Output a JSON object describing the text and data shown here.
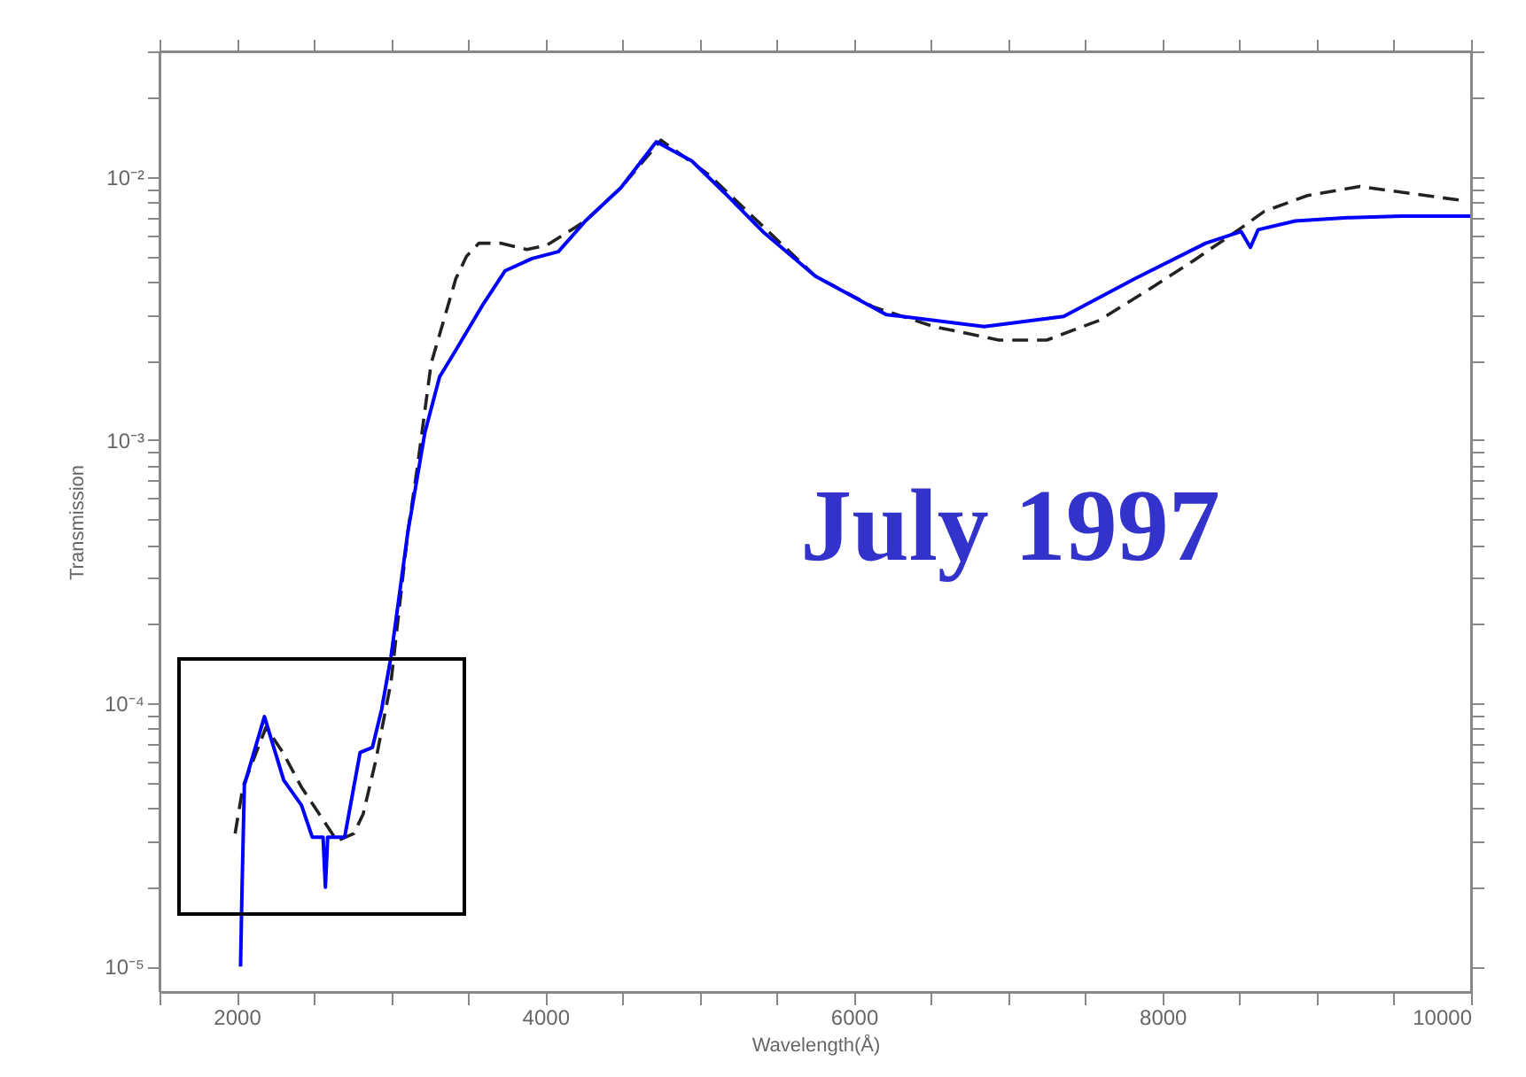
{
  "chart_data": {
    "type": "line",
    "xlabel": "Wavelength(Å)",
    "ylabel": "Transmission",
    "log": "y",
    "xlim": [
      1500,
      10000
    ],
    "ylim": [
      8e-06,
      0.03
    ],
    "xticks": [
      {
        "value": 1500,
        "label": null
      },
      2000,
      {
        "value": 2500,
        "label": null
      },
      {
        "value": 3000,
        "label": null
      },
      {
        "value": 3500,
        "label": null
      },
      4000,
      {
        "value": 4500,
        "label": null
      },
      {
        "value": 5000,
        "label": null
      },
      {
        "value": 5500,
        "label": null
      },
      6000,
      {
        "value": 6500,
        "label": null
      },
      {
        "value": 7000,
        "label": null
      },
      {
        "value": 7500,
        "label": null
      },
      8000,
      {
        "value": 8500,
        "label": null
      },
      {
        "value": 9000,
        "label": null
      },
      {
        "value": 9500,
        "label": null
      },
      10000
    ],
    "yticks": [
      {
        "value": 1e-05,
        "label": "10⁻⁵"
      },
      {
        "value": 2e-05,
        "label": null
      },
      {
        "value": 3e-05,
        "label": null
      },
      {
        "value": 4e-05,
        "label": null
      },
      {
        "value": 5e-05,
        "label": null
      },
      {
        "value": 6e-05,
        "label": null
      },
      {
        "value": 7e-05,
        "label": null
      },
      {
        "value": 8e-05,
        "label": null
      },
      {
        "value": 9e-05,
        "label": null
      },
      {
        "value": 0.0001,
        "label": "10⁻⁴"
      },
      {
        "value": 0.0002,
        "label": null
      },
      {
        "value": 0.0003,
        "label": null
      },
      {
        "value": 0.0004,
        "label": null
      },
      {
        "value": 0.0005,
        "label": null
      },
      {
        "value": 0.0006,
        "label": null
      },
      {
        "value": 0.0007,
        "label": null
      },
      {
        "value": 0.0008,
        "label": null
      },
      {
        "value": 0.0009,
        "label": null
      },
      {
        "value": 0.001,
        "label": "10⁻³"
      },
      {
        "value": 0.002,
        "label": null
      },
      {
        "value": 0.003,
        "label": null
      },
      {
        "value": 0.004,
        "label": null
      },
      {
        "value": 0.005,
        "label": null
      },
      {
        "value": 0.006,
        "label": null
      },
      {
        "value": 0.007,
        "label": null
      },
      {
        "value": 0.008,
        "label": null
      },
      {
        "value": 0.009,
        "label": null
      },
      {
        "value": 0.01,
        "label": "10⁻²"
      },
      {
        "value": 0.02,
        "label": null
      },
      {
        "value": 0.03,
        "label": null
      }
    ],
    "grid": false,
    "annotations": [
      "July 1997"
    ],
    "series": [
      {
        "type": "line",
        "line_style": "dashed",
        "color": "#222222",
        "x": [
          1990,
          2040,
          2190,
          2300,
          2420,
          2535,
          2650,
          2760,
          2820,
          2900,
          3000,
          3110,
          3170,
          3260,
          3420,
          3490,
          3570,
          3710,
          3880,
          4010,
          4260,
          4490,
          4750,
          5060,
          5330,
          5750,
          6130,
          6520,
          6940,
          7250,
          7590,
          7900,
          8200,
          8510,
          8660,
          8940,
          9280,
          9580,
          9970
        ],
        "values": [
          3.2e-05,
          4.8e-05,
          8.1e-05,
          6.5e-05,
          4.8e-05,
          3.8e-05,
          3e-05,
          3.2e-05,
          3.8e-05,
          6e-05,
          0.00012,
          0.00045,
          0.00078,
          0.00195,
          0.0041,
          0.005,
          0.0056,
          0.0056,
          0.0053,
          0.0055,
          0.0068,
          0.0091,
          0.0138,
          0.0102,
          0.0072,
          0.0042,
          0.0032,
          0.0027,
          0.0024,
          0.0024,
          0.00285,
          0.0037,
          0.0048,
          0.0064,
          0.0074,
          0.0085,
          0.0092,
          0.0087,
          0.0081
        ]
      },
      {
        "type": "line",
        "line_style": "solid",
        "color": "#0000ff",
        "x": [
          2025,
          2035,
          2050,
          2180,
          2305,
          2420,
          2490,
          2560,
          2575,
          2590,
          2700,
          2800,
          2880,
          2940,
          3000,
          3110,
          3145,
          3220,
          3315,
          3400,
          3600,
          3740,
          3915,
          4085,
          4260,
          4490,
          4720,
          4950,
          5180,
          5410,
          5750,
          6210,
          6845,
          7360,
          7820,
          8280,
          8510,
          8570,
          8620,
          8860,
          9200,
          9550,
          10000
        ],
        "values": [
          1e-05,
          2e-05,
          4.9e-05,
          8.9e-05,
          5.1e-05,
          4.1e-05,
          3.1e-05,
          3.1e-05,
          2e-05,
          3.1e-05,
          3.1e-05,
          6.5e-05,
          6.8e-05,
          9.5e-05,
          0.00015,
          0.00045,
          0.00059,
          0.00107,
          0.00174,
          0.0021,
          0.0033,
          0.0044,
          0.0049,
          0.0052,
          0.0068,
          0.0091,
          0.0136,
          0.0115,
          0.0085,
          0.0062,
          0.0042,
          0.003,
          0.0027,
          0.00295,
          0.0041,
          0.0056,
          0.0062,
          0.0054,
          0.0063,
          0.0068,
          0.007,
          0.0071,
          0.0071
        ]
      }
    ]
  }
}
